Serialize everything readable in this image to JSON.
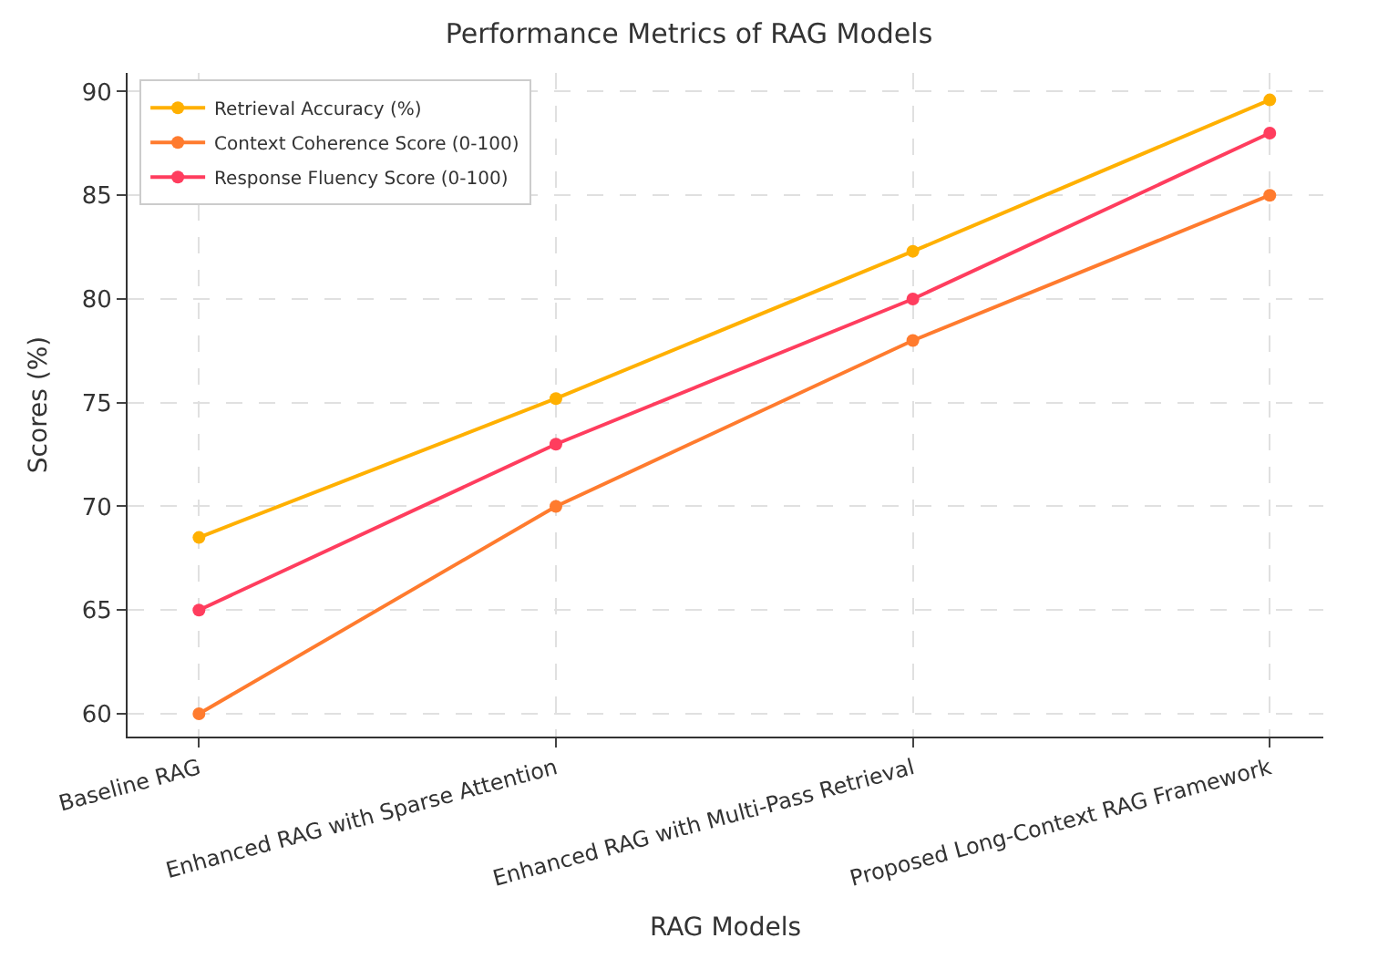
{
  "chart_data": {
    "type": "line",
    "title": "Performance Metrics of RAG Models",
    "xlabel": "RAG Models",
    "ylabel": "Scores (%)",
    "categories": [
      "Baseline RAG",
      "Enhanced RAG with Sparse Attention",
      "Enhanced RAG with Multi-Pass Retrieval",
      "Proposed Long-Context RAG Framework"
    ],
    "series": [
      {
        "name": "Retrieval Accuracy (%)",
        "color": "#ffb000",
        "values": [
          68.5,
          75.2,
          82.3,
          89.6
        ]
      },
      {
        "name": "Context Coherence Score (0-100)",
        "color": "#ff7b2e",
        "values": [
          60,
          70,
          78,
          85
        ]
      },
      {
        "name": "Response Fluency Score (0-100)",
        "color": "#ff3d5e",
        "values": [
          65,
          73,
          80,
          88
        ]
      }
    ],
    "ylim": [
      58.9,
      90.9
    ],
    "yticks": [
      60,
      65,
      70,
      75,
      80,
      85,
      90
    ],
    "grid": true,
    "legend": "top left",
    "marker": "circle",
    "line_style": "solid"
  }
}
